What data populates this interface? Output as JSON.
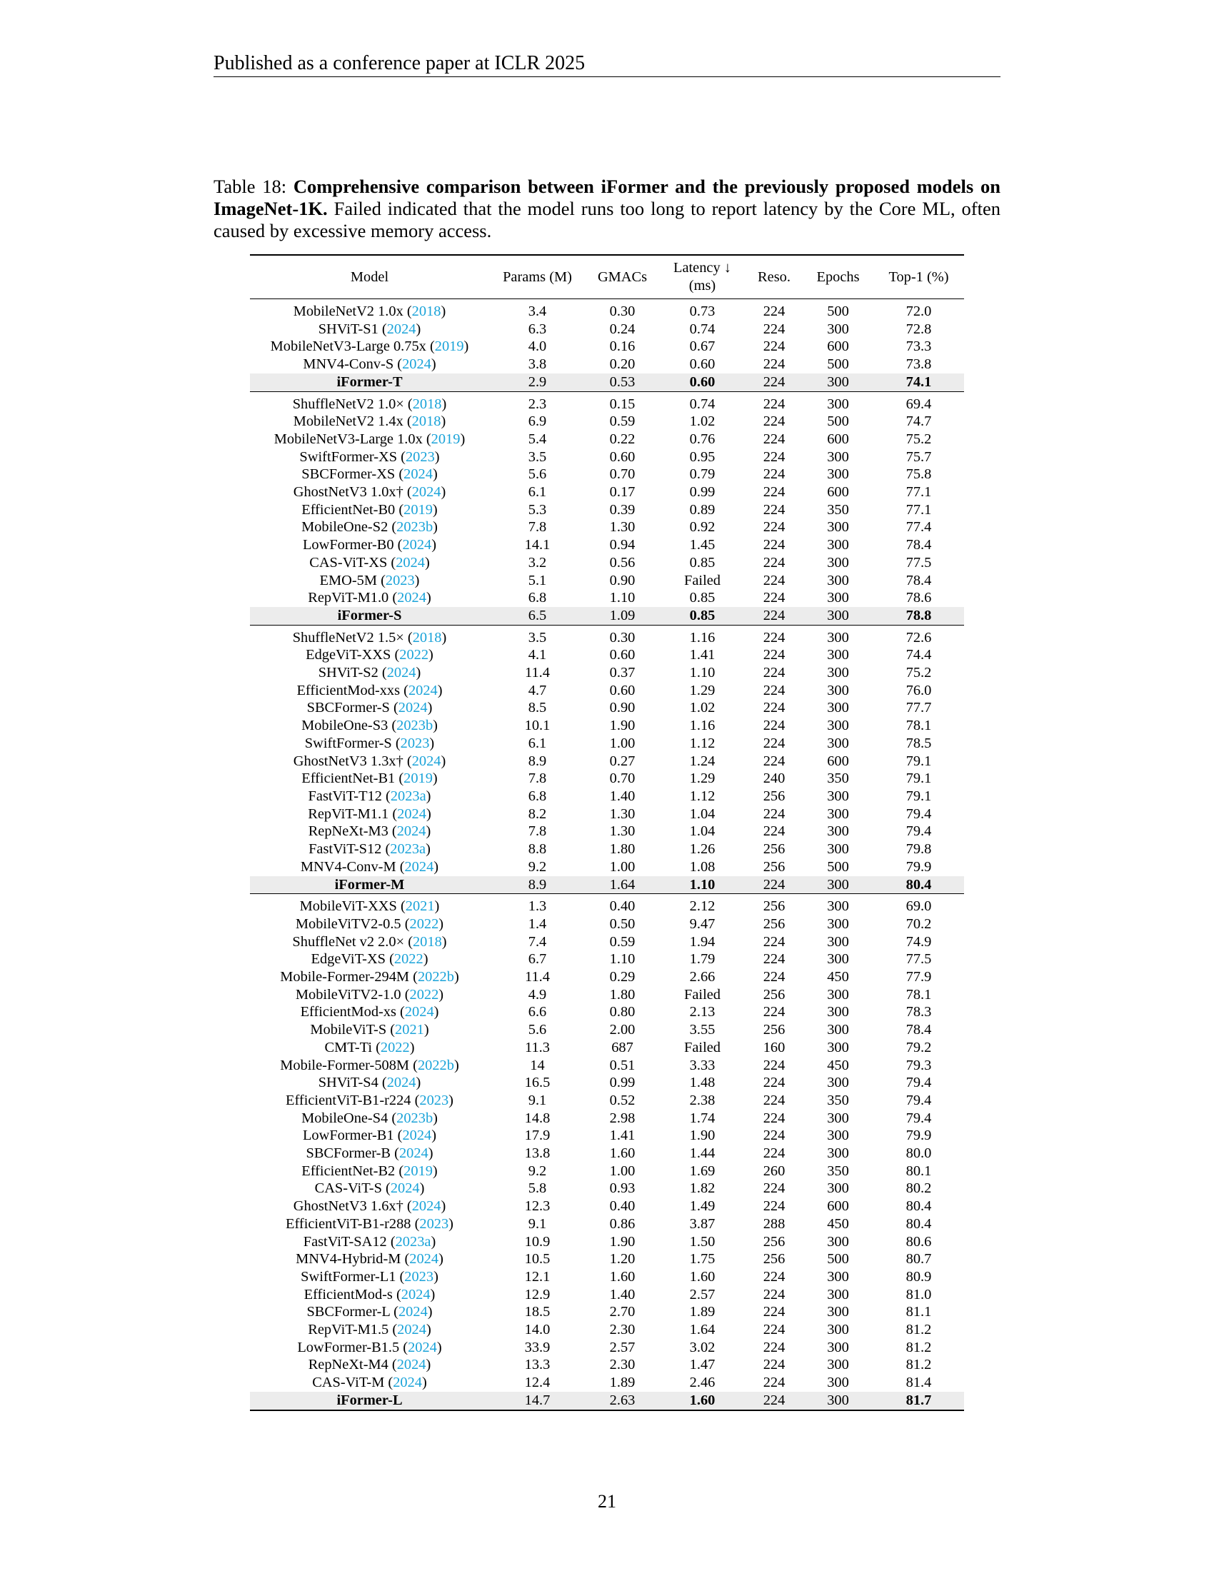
{
  "header": "Published as a conference paper at ICLR 2025",
  "caption": {
    "label": "Table 18: ",
    "bold": "Comprehensive comparison between iFormer and the previously proposed models on ImageNet-1K.",
    "rest": " Failed indicated that the model runs too long to report latency by the Core ML, often caused by excessive memory access."
  },
  "columns": {
    "model": "Model",
    "params": "Params (M)",
    "gmacs": "GMACs",
    "latency_line1": "Latency ↓",
    "latency_line2": "(ms)",
    "reso": "Reso.",
    "epochs": "Epochs",
    "top1": "Top-1 (%)"
  },
  "groups": [
    {
      "rows": [
        [
          "MobileNetV2 1.0x (",
          "2018",
          ")",
          "3.4",
          "0.30",
          "0.73",
          "224",
          "500",
          "72.0"
        ],
        [
          "SHViT-S1 (",
          "2024",
          ")",
          "6.3",
          "0.24",
          "0.74",
          "224",
          "300",
          "72.8"
        ],
        [
          "MobileNetV3-Large 0.75x (",
          "2019",
          ")",
          "4.0",
          "0.16",
          "0.67",
          "224",
          "600",
          "73.3"
        ],
        [
          "MNV4-Conv-S (",
          "2024",
          ")",
          "3.8",
          "0.20",
          "0.60",
          "224",
          "500",
          "73.8"
        ]
      ],
      "best": [
        "iFormer-T",
        "2.9",
        "0.53",
        "0.60",
        "224",
        "300",
        "74.1"
      ]
    },
    {
      "rows": [
        [
          "ShuffleNetV2 1.0× (",
          "2018",
          ")",
          "2.3",
          "0.15",
          "0.74",
          "224",
          "300",
          "69.4"
        ],
        [
          "MobileNetV2 1.4x (",
          "2018",
          ")",
          "6.9",
          "0.59",
          "1.02",
          "224",
          "500",
          "74.7"
        ],
        [
          "MobileNetV3-Large 1.0x (",
          "2019",
          ")",
          "5.4",
          "0.22",
          "0.76",
          "224",
          "600",
          "75.2"
        ],
        [
          "SwiftFormer-XS (",
          "2023",
          ")",
          "3.5",
          "0.60",
          "0.95",
          "224",
          "300",
          "75.7"
        ],
        [
          "SBCFormer-XS (",
          "2024",
          ")",
          "5.6",
          "0.70",
          "0.79",
          "224",
          "300",
          "75.8"
        ],
        [
          "GhostNetV3 1.0x† (",
          "2024",
          ")",
          "6.1",
          "0.17",
          "0.99",
          "224",
          "600",
          "77.1"
        ],
        [
          "EfficientNet-B0 (",
          "2019",
          ")",
          "5.3",
          "0.39",
          "0.89",
          "224",
          "350",
          "77.1"
        ],
        [
          "MobileOne-S2 (",
          "2023b",
          ")",
          "7.8",
          "1.30",
          "0.92",
          "224",
          "300",
          "77.4"
        ],
        [
          "LowFormer-B0 (",
          "2024",
          ")",
          "14.1",
          "0.94",
          "1.45",
          "224",
          "300",
          "78.4"
        ],
        [
          "CAS-ViT-XS (",
          "2024",
          ")",
          "3.2",
          "0.56",
          "0.85",
          "224",
          "300",
          "77.5"
        ],
        [
          "EMO-5M (",
          "2023",
          ")",
          "5.1",
          "0.90",
          "Failed",
          "224",
          "300",
          "78.4"
        ],
        [
          "RepViT-M1.0 (",
          "2024",
          ")",
          "6.8",
          "1.10",
          "0.85",
          "224",
          "300",
          "78.6"
        ]
      ],
      "best": [
        "iFormer-S",
        "6.5",
        "1.09",
        "0.85",
        "224",
        "300",
        "78.8"
      ]
    },
    {
      "rows": [
        [
          "ShuffleNetV2 1.5× (",
          "2018",
          ")",
          "3.5",
          "0.30",
          "1.16",
          "224",
          "300",
          "72.6"
        ],
        [
          "EdgeViT-XXS (",
          "2022",
          ")",
          "4.1",
          "0.60",
          "1.41",
          "224",
          "300",
          "74.4"
        ],
        [
          "SHViT-S2 (",
          "2024",
          ")",
          "11.4",
          "0.37",
          "1.10",
          "224",
          "300",
          "75.2"
        ],
        [
          "EfficientMod-xxs (",
          "2024",
          ")",
          "4.7",
          "0.60",
          "1.29",
          "224",
          "300",
          "76.0"
        ],
        [
          "SBCFormer-S (",
          "2024",
          ")",
          "8.5",
          "0.90",
          "1.02",
          "224",
          "300",
          "77.7"
        ],
        [
          "MobileOne-S3 (",
          "2023b",
          ")",
          "10.1",
          "1.90",
          "1.16",
          "224",
          "300",
          "78.1"
        ],
        [
          "SwiftFormer-S (",
          "2023",
          ")",
          "6.1",
          "1.00",
          "1.12",
          "224",
          "300",
          "78.5"
        ],
        [
          "GhostNetV3 1.3x† (",
          "2024",
          ")",
          "8.9",
          "0.27",
          "1.24",
          "224",
          "600",
          "79.1"
        ],
        [
          "EfficientNet-B1 (",
          "2019",
          ")",
          "7.8",
          "0.70",
          "1.29",
          "240",
          "350",
          "79.1"
        ],
        [
          "FastViT-T12 (",
          "2023a",
          ")",
          "6.8",
          "1.40",
          "1.12",
          "256",
          "300",
          "79.1"
        ],
        [
          "RepViT-M1.1 (",
          "2024",
          ")",
          "8.2",
          "1.30",
          "1.04",
          "224",
          "300",
          "79.4"
        ],
        [
          "RepNeXt-M3 (",
          "2024",
          ")",
          "7.8",
          "1.30",
          "1.04",
          "224",
          "300",
          "79.4"
        ],
        [
          "FastViT-S12 (",
          "2023a",
          ")",
          "8.8",
          "1.80",
          "1.26",
          "256",
          "300",
          "79.8"
        ],
        [
          "MNV4-Conv-M (",
          "2024",
          ")",
          "9.2",
          "1.00",
          "1.08",
          "256",
          "500",
          "79.9"
        ]
      ],
      "best": [
        "iFormer-M",
        "8.9",
        "1.64",
        "1.10",
        "224",
        "300",
        "80.4"
      ]
    },
    {
      "rows": [
        [
          "MobileViT-XXS (",
          "2021",
          ")",
          "1.3",
          "0.40",
          "2.12",
          "256",
          "300",
          "69.0"
        ],
        [
          "MobileViTV2-0.5 (",
          "2022",
          ")",
          "1.4",
          "0.50",
          "9.47",
          "256",
          "300",
          "70.2"
        ],
        [
          "ShuffleNet v2 2.0× (",
          "2018",
          ")",
          "7.4",
          "0.59",
          "1.94",
          "224",
          "300",
          "74.9"
        ],
        [
          "EdgeViT-XS (",
          "2022",
          ")",
          "6.7",
          "1.10",
          "1.79",
          "224",
          "300",
          "77.5"
        ],
        [
          "Mobile-Former-294M (",
          "2022b",
          ")",
          "11.4",
          "0.29",
          "2.66",
          "224",
          "450",
          "77.9"
        ],
        [
          "MobileViTV2-1.0 (",
          "2022",
          ")",
          "4.9",
          "1.80",
          "Failed",
          "256",
          "300",
          "78.1"
        ],
        [
          "EfficientMod-xs (",
          "2024",
          ")",
          "6.6",
          "0.80",
          "2.13",
          "224",
          "300",
          "78.3"
        ],
        [
          "MobileViT-S (",
          "2021",
          ")",
          "5.6",
          "2.00",
          "3.55",
          "256",
          "300",
          "78.4"
        ],
        [
          "CMT-Ti (",
          "2022",
          ")",
          "11.3",
          "687",
          "Failed",
          "160",
          "300",
          "79.2"
        ],
        [
          "Mobile-Former-508M (",
          "2022b",
          ")",
          "14",
          "0.51",
          "3.33",
          "224",
          "450",
          "79.3"
        ],
        [
          "SHViT-S4 (",
          "2024",
          ")",
          "16.5",
          "0.99",
          "1.48",
          "224",
          "300",
          "79.4"
        ],
        [
          "EfficientViT-B1-r224 (",
          "2023",
          ")",
          "9.1",
          "0.52",
          "2.38",
          "224",
          "350",
          "79.4"
        ],
        [
          "MobileOne-S4 (",
          "2023b",
          ")",
          "14.8",
          "2.98",
          "1.74",
          "224",
          "300",
          "79.4"
        ],
        [
          "LowFormer-B1 (",
          "2024",
          ")",
          "17.9",
          "1.41",
          "1.90",
          "224",
          "300",
          "79.9"
        ],
        [
          "SBCFormer-B (",
          "2024",
          ")",
          "13.8",
          "1.60",
          "1.44",
          "224",
          "300",
          "80.0"
        ],
        [
          "EfficientNet-B2 (",
          "2019",
          ")",
          "9.2",
          "1.00",
          "1.69",
          "260",
          "350",
          "80.1"
        ],
        [
          "CAS-ViT-S (",
          "2024",
          ")",
          "5.8",
          "0.93",
          "1.82",
          "224",
          "300",
          "80.2"
        ],
        [
          "GhostNetV3 1.6x† (",
          "2024",
          ")",
          "12.3",
          "0.40",
          "1.49",
          "224",
          "600",
          "80.4"
        ],
        [
          "EfficientViT-B1-r288 (",
          "2023",
          ")",
          "9.1",
          "0.86",
          "3.87",
          "288",
          "450",
          "80.4"
        ],
        [
          "FastViT-SA12 (",
          "2023a",
          ")",
          "10.9",
          "1.90",
          "1.50",
          "256",
          "300",
          "80.6"
        ],
        [
          "MNV4-Hybrid-M (",
          "2024",
          ")",
          "10.5",
          "1.20",
          "1.75",
          "256",
          "500",
          "80.7"
        ],
        [
          "SwiftFormer-L1 (",
          "2023",
          ")",
          "12.1",
          "1.60",
          "1.60",
          "224",
          "300",
          "80.9"
        ],
        [
          "EfficientMod-s (",
          "2024",
          ")",
          "12.9",
          "1.40",
          "2.57",
          "224",
          "300",
          "81.0"
        ],
        [
          "SBCFormer-L (",
          "2024",
          ")",
          "18.5",
          "2.70",
          "1.89",
          "224",
          "300",
          "81.1"
        ],
        [
          "RepViT-M1.5 (",
          "2024",
          ")",
          "14.0",
          "2.30",
          "1.64",
          "224",
          "300",
          "81.2"
        ],
        [
          "LowFormer-B1.5 (",
          "2024",
          ")",
          "33.9",
          "2.57",
          "3.02",
          "224",
          "300",
          "81.2"
        ],
        [
          "RepNeXt-M4 (",
          "2024",
          ")",
          "13.3",
          "2.30",
          "1.47",
          "224",
          "300",
          "81.2"
        ],
        [
          "CAS-ViT-M (",
          "2024",
          ")",
          "12.4",
          "1.89",
          "2.46",
          "224",
          "300",
          "81.4"
        ]
      ],
      "best": [
        "iFormer-L",
        "14.7",
        "2.63",
        "1.60",
        "224",
        "300",
        "81.7"
      ]
    }
  ],
  "page_number": "21"
}
